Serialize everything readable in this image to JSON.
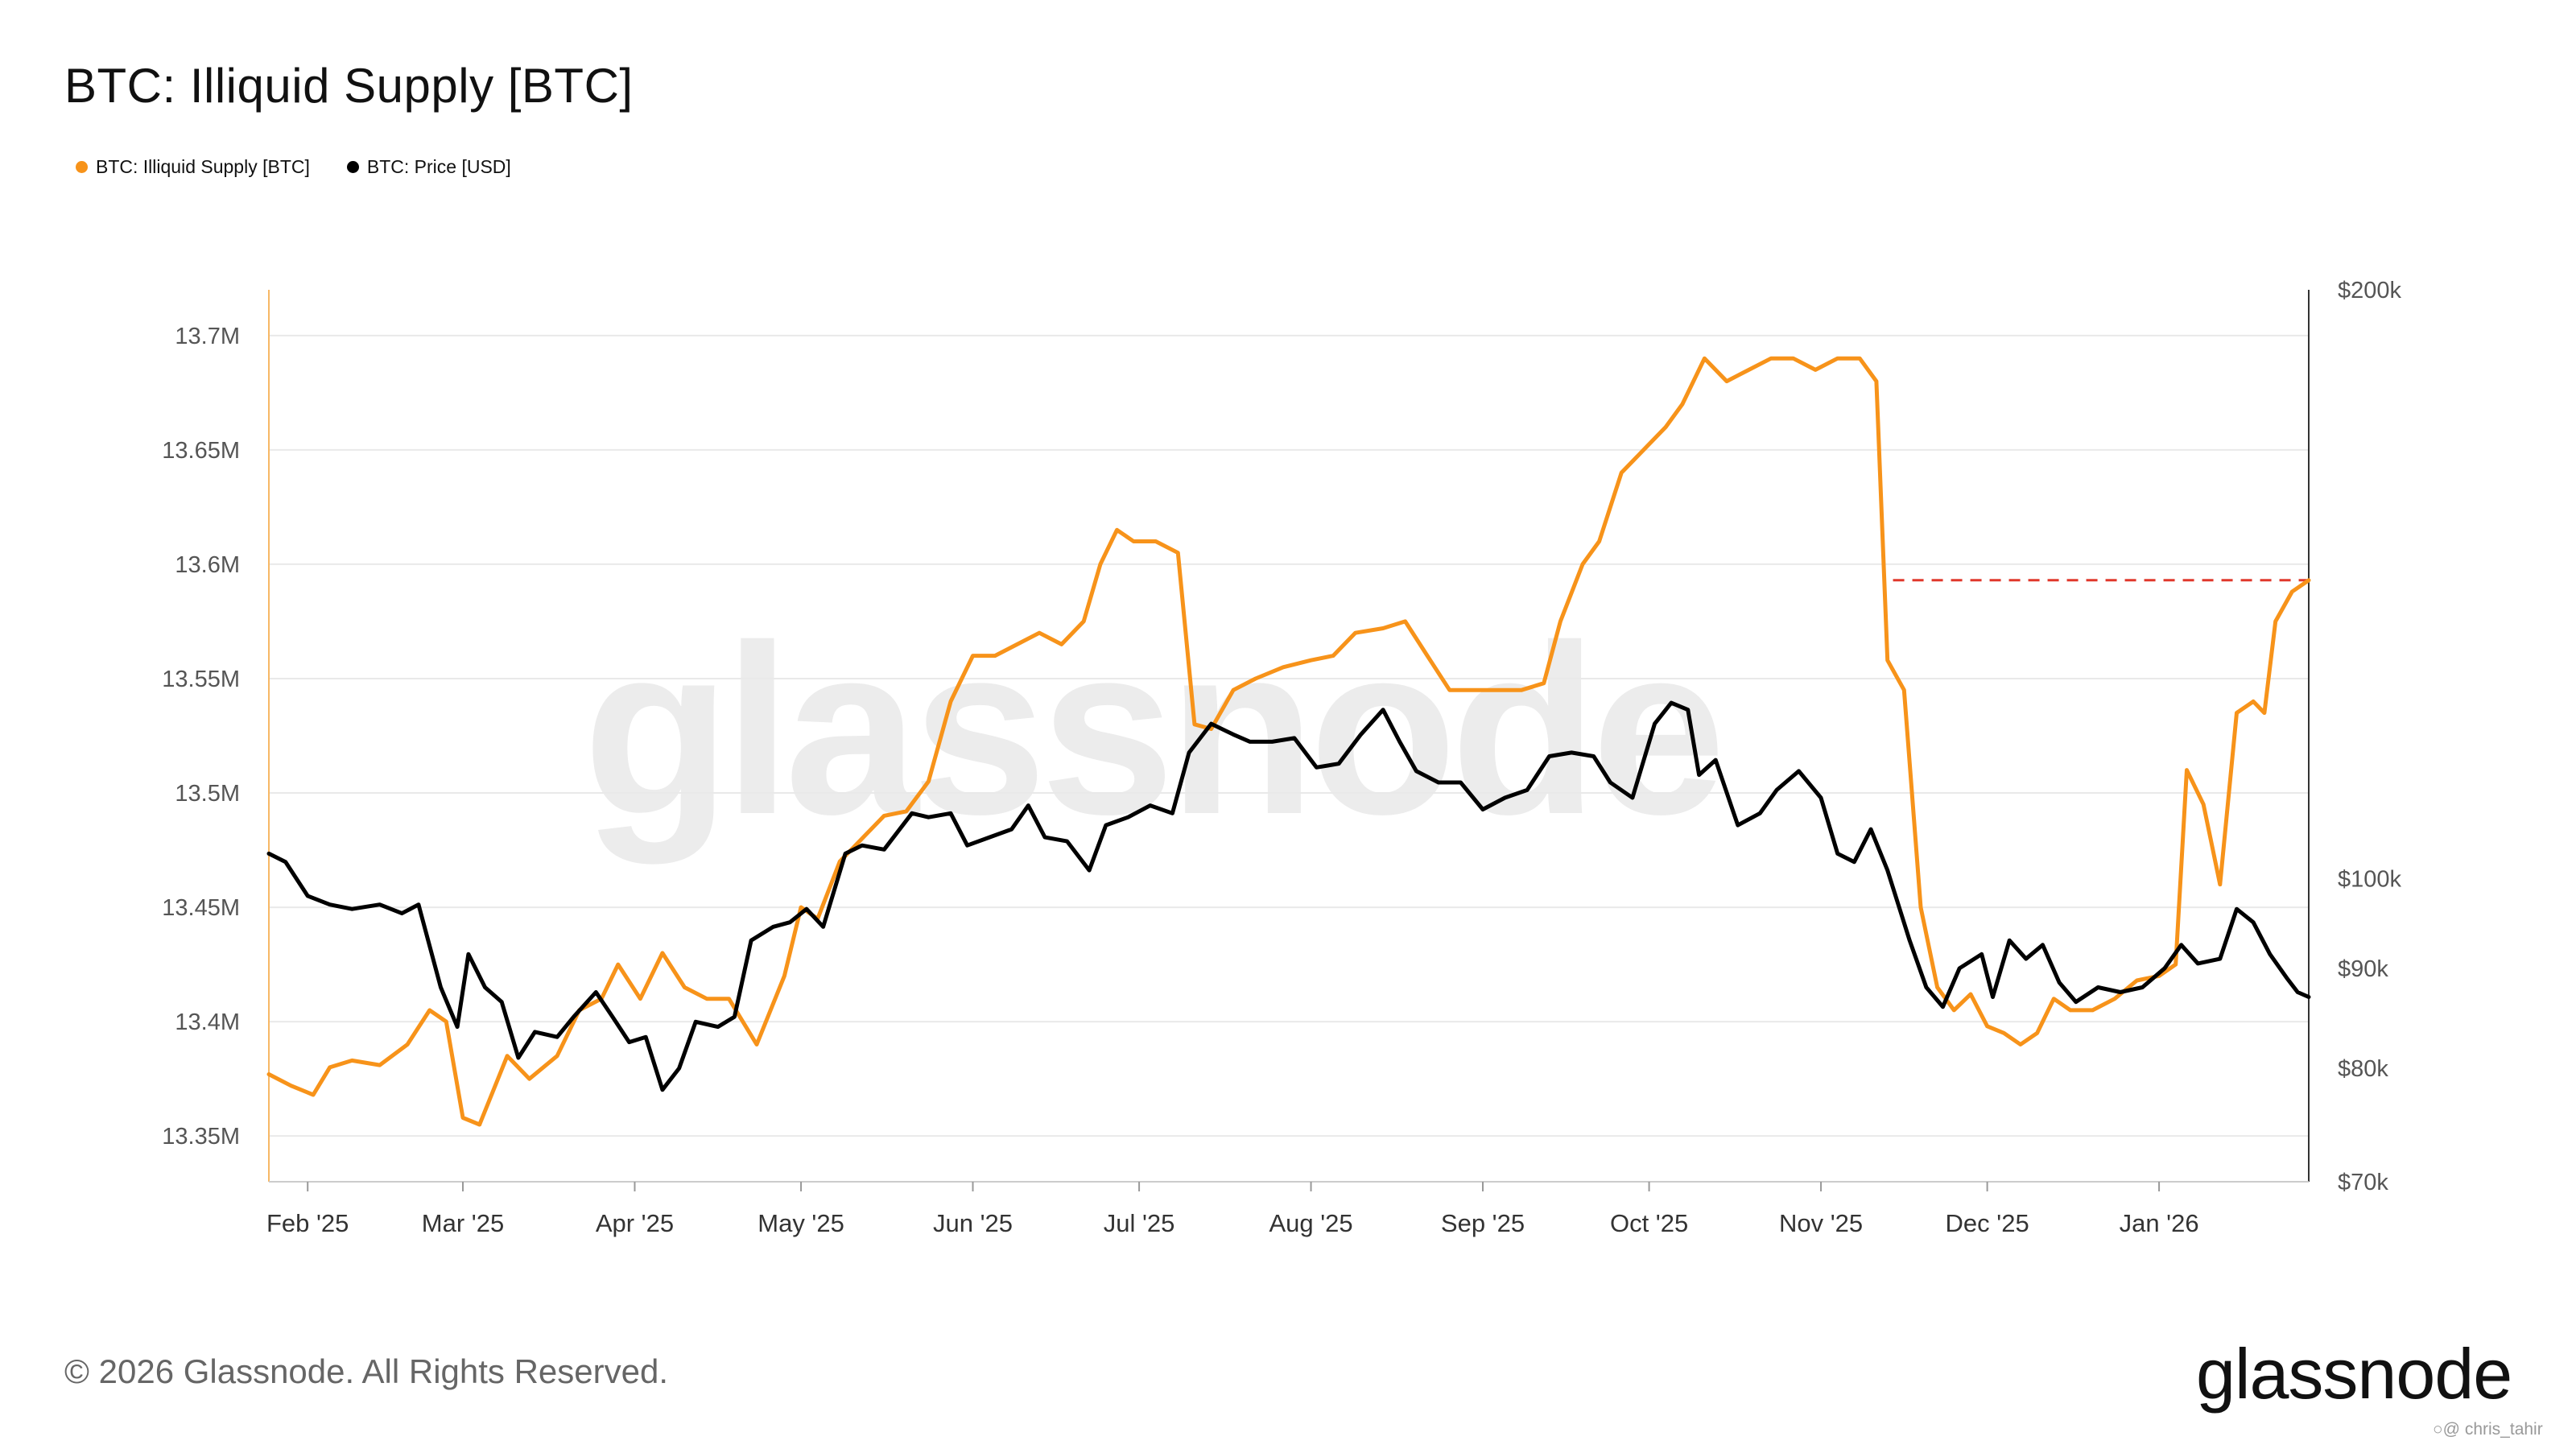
{
  "title": "BTC: Illiquid Supply [BTC]",
  "legend": [
    {
      "label": "BTC: Illiquid Supply [BTC]",
      "color": "#f7931a"
    },
    {
      "label": "BTC: Price [USD]",
      "color": "#000000"
    }
  ],
  "watermark": "glassnode",
  "copyright": "© 2026 Glassnode. All Rights Reserved.",
  "brand": "glassnode",
  "credit": "○@ chris_tahir",
  "chart_data": {
    "type": "line",
    "x_range": [
      "2025-01-25",
      "2026-01-28"
    ],
    "x_ticks": [
      "Feb '25",
      "Mar '25",
      "Apr '25",
      "May '25",
      "Jun '25",
      "Jul '25",
      "Aug '25",
      "Sep '25",
      "Oct '25",
      "Nov '25",
      "Dec '25",
      "Jan '26"
    ],
    "x_tick_dates": [
      "2025-02-01",
      "2025-03-01",
      "2025-04-01",
      "2025-05-01",
      "2025-06-01",
      "2025-07-01",
      "2025-08-01",
      "2025-09-01",
      "2025-10-01",
      "2025-11-01",
      "2025-12-01",
      "2026-01-01"
    ],
    "y_left": {
      "label": "",
      "range": [
        13330000,
        13720000
      ],
      "ticks": [
        "13.35M",
        "13.4M",
        "13.45M",
        "13.5M",
        "13.55M",
        "13.6M",
        "13.65M",
        "13.7M"
      ],
      "tick_values": [
        13350000,
        13400000,
        13450000,
        13500000,
        13550000,
        13600000,
        13650000,
        13700000
      ]
    },
    "y_right": {
      "label": "",
      "scale": "log",
      "range": [
        70000,
        200000
      ],
      "ticks": [
        "$70k",
        "$80k",
        "$90k",
        "$100k",
        "$200k"
      ],
      "tick_values": [
        70000,
        80000,
        90000,
        100000,
        200000
      ]
    },
    "grid": true,
    "reference_line": {
      "series": "BTC: Illiquid Supply [BTC]",
      "value": 13593000,
      "from": "2025-11-14",
      "to": "2026-01-28",
      "style": "dashed",
      "color": "#e0382b"
    },
    "series": [
      {
        "name": "BTC: Illiquid Supply [BTC]",
        "color": "#f7931a",
        "axis": "left",
        "points": [
          [
            "2025-01-25",
            13377000
          ],
          [
            "2025-01-29",
            13372000
          ],
          [
            "2025-02-02",
            13368000
          ],
          [
            "2025-02-05",
            13380000
          ],
          [
            "2025-02-09",
            13383000
          ],
          [
            "2025-02-14",
            13381000
          ],
          [
            "2025-02-19",
            13390000
          ],
          [
            "2025-02-23",
            13405000
          ],
          [
            "2025-02-26",
            13400000
          ],
          [
            "2025-03-01",
            13358000
          ],
          [
            "2025-03-04",
            13355000
          ],
          [
            "2025-03-09",
            13385000
          ],
          [
            "2025-03-13",
            13375000
          ],
          [
            "2025-03-18",
            13385000
          ],
          [
            "2025-03-22",
            13405000
          ],
          [
            "2025-03-26",
            13410000
          ],
          [
            "2025-03-29",
            13425000
          ],
          [
            "2025-04-02",
            13410000
          ],
          [
            "2025-04-06",
            13430000
          ],
          [
            "2025-04-10",
            13415000
          ],
          [
            "2025-04-14",
            13410000
          ],
          [
            "2025-04-18",
            13410000
          ],
          [
            "2025-04-23",
            13390000
          ],
          [
            "2025-04-28",
            13420000
          ],
          [
            "2025-05-01",
            13450000
          ],
          [
            "2025-05-04",
            13445000
          ],
          [
            "2025-05-08",
            13470000
          ],
          [
            "2025-05-12",
            13480000
          ],
          [
            "2025-05-16",
            13490000
          ],
          [
            "2025-05-20",
            13492000
          ],
          [
            "2025-05-24",
            13505000
          ],
          [
            "2025-05-28",
            13540000
          ],
          [
            "2025-06-01",
            13560000
          ],
          [
            "2025-06-05",
            13560000
          ],
          [
            "2025-06-09",
            13565000
          ],
          [
            "2025-06-13",
            13570000
          ],
          [
            "2025-06-17",
            13565000
          ],
          [
            "2025-06-21",
            13575000
          ],
          [
            "2025-06-24",
            13600000
          ],
          [
            "2025-06-27",
            13615000
          ],
          [
            "2025-06-30",
            13610000
          ],
          [
            "2025-07-04",
            13610000
          ],
          [
            "2025-07-08",
            13605000
          ],
          [
            "2025-07-11",
            13530000
          ],
          [
            "2025-07-14",
            13528000
          ],
          [
            "2025-07-18",
            13545000
          ],
          [
            "2025-07-22",
            13550000
          ],
          [
            "2025-07-27",
            13555000
          ],
          [
            "2025-08-01",
            13558000
          ],
          [
            "2025-08-05",
            13560000
          ],
          [
            "2025-08-09",
            13570000
          ],
          [
            "2025-08-14",
            13572000
          ],
          [
            "2025-08-18",
            13575000
          ],
          [
            "2025-08-22",
            13560000
          ],
          [
            "2025-08-26",
            13545000
          ],
          [
            "2025-08-30",
            13545000
          ],
          [
            "2025-09-03",
            13545000
          ],
          [
            "2025-09-08",
            13545000
          ],
          [
            "2025-09-12",
            13548000
          ],
          [
            "2025-09-15",
            13575000
          ],
          [
            "2025-09-19",
            13600000
          ],
          [
            "2025-09-22",
            13610000
          ],
          [
            "2025-09-26",
            13640000
          ],
          [
            "2025-09-30",
            13650000
          ],
          [
            "2025-10-04",
            13660000
          ],
          [
            "2025-10-07",
            13670000
          ],
          [
            "2025-10-11",
            13690000
          ],
          [
            "2025-10-15",
            13680000
          ],
          [
            "2025-10-19",
            13685000
          ],
          [
            "2025-10-23",
            13690000
          ],
          [
            "2025-10-27",
            13690000
          ],
          [
            "2025-10-31",
            13685000
          ],
          [
            "2025-11-04",
            13690000
          ],
          [
            "2025-11-08",
            13690000
          ],
          [
            "2025-11-11",
            13680000
          ],
          [
            "2025-11-13",
            13558000
          ],
          [
            "2025-11-16",
            13545000
          ],
          [
            "2025-11-19",
            13450000
          ],
          [
            "2025-11-22",
            13415000
          ],
          [
            "2025-11-25",
            13405000
          ],
          [
            "2025-11-28",
            13412000
          ],
          [
            "2025-12-01",
            13398000
          ],
          [
            "2025-12-04",
            13395000
          ],
          [
            "2025-12-07",
            13390000
          ],
          [
            "2025-12-10",
            13395000
          ],
          [
            "2025-12-13",
            13410000
          ],
          [
            "2025-12-16",
            13405000
          ],
          [
            "2025-12-20",
            13405000
          ],
          [
            "2025-12-24",
            13410000
          ],
          [
            "2025-12-28",
            13418000
          ],
          [
            "2026-01-01",
            13420000
          ],
          [
            "2026-01-04",
            13425000
          ],
          [
            "2026-01-06",
            13510000
          ],
          [
            "2026-01-09",
            13495000
          ],
          [
            "2026-01-12",
            13460000
          ],
          [
            "2026-01-15",
            13535000
          ],
          [
            "2026-01-18",
            13540000
          ],
          [
            "2026-01-20",
            13535000
          ],
          [
            "2026-01-22",
            13575000
          ],
          [
            "2026-01-25",
            13588000
          ],
          [
            "2026-01-28",
            13593000
          ]
        ]
      },
      {
        "name": "BTC: Price [USD]",
        "color": "#000000",
        "axis": "right",
        "points": [
          [
            "2025-01-25",
            103000
          ],
          [
            "2025-01-28",
            102000
          ],
          [
            "2025-02-01",
            98000
          ],
          [
            "2025-02-05",
            97000
          ],
          [
            "2025-02-09",
            96500
          ],
          [
            "2025-02-14",
            97000
          ],
          [
            "2025-02-18",
            96000
          ],
          [
            "2025-02-21",
            97000
          ],
          [
            "2025-02-25",
            88000
          ],
          [
            "2025-02-28",
            84000
          ],
          [
            "2025-03-02",
            91500
          ],
          [
            "2025-03-05",
            88000
          ],
          [
            "2025-03-08",
            86500
          ],
          [
            "2025-03-11",
            81000
          ],
          [
            "2025-03-14",
            83500
          ],
          [
            "2025-03-18",
            83000
          ],
          [
            "2025-03-21",
            85000
          ],
          [
            "2025-03-25",
            87500
          ],
          [
            "2025-03-28",
            85000
          ],
          [
            "2025-03-31",
            82500
          ],
          [
            "2025-04-03",
            83000
          ],
          [
            "2025-04-06",
            78000
          ],
          [
            "2025-04-09",
            80000
          ],
          [
            "2025-04-12",
            84500
          ],
          [
            "2025-04-16",
            84000
          ],
          [
            "2025-04-19",
            85000
          ],
          [
            "2025-04-22",
            93000
          ],
          [
            "2025-04-26",
            94500
          ],
          [
            "2025-04-29",
            95000
          ],
          [
            "2025-05-02",
            96500
          ],
          [
            "2025-05-05",
            94500
          ],
          [
            "2025-05-09",
            103000
          ],
          [
            "2025-05-12",
            104000
          ],
          [
            "2025-05-16",
            103500
          ],
          [
            "2025-05-21",
            108000
          ],
          [
            "2025-05-24",
            107500
          ],
          [
            "2025-05-28",
            108000
          ],
          [
            "2025-05-31",
            104000
          ],
          [
            "2025-06-04",
            105000
          ],
          [
            "2025-06-08",
            106000
          ],
          [
            "2025-06-11",
            109000
          ],
          [
            "2025-06-14",
            105000
          ],
          [
            "2025-06-18",
            104500
          ],
          [
            "2025-06-22",
            101000
          ],
          [
            "2025-06-25",
            106500
          ],
          [
            "2025-06-29",
            107500
          ],
          [
            "2025-07-03",
            109000
          ],
          [
            "2025-07-07",
            108000
          ],
          [
            "2025-07-10",
            116000
          ],
          [
            "2025-07-14",
            120000
          ],
          [
            "2025-07-18",
            118500
          ],
          [
            "2025-07-21",
            117500
          ],
          [
            "2025-07-25",
            117500
          ],
          [
            "2025-07-29",
            118000
          ],
          [
            "2025-08-02",
            114000
          ],
          [
            "2025-08-06",
            114500
          ],
          [
            "2025-08-10",
            118500
          ],
          [
            "2025-08-14",
            122000
          ],
          [
            "2025-08-17",
            117500
          ],
          [
            "2025-08-20",
            113500
          ],
          [
            "2025-08-24",
            112000
          ],
          [
            "2025-08-28",
            112000
          ],
          [
            "2025-09-01",
            108500
          ],
          [
            "2025-09-05",
            110000
          ],
          [
            "2025-09-09",
            111000
          ],
          [
            "2025-09-13",
            115500
          ],
          [
            "2025-09-17",
            116000
          ],
          [
            "2025-09-21",
            115500
          ],
          [
            "2025-09-24",
            112000
          ],
          [
            "2025-09-28",
            110000
          ],
          [
            "2025-10-02",
            120000
          ],
          [
            "2025-10-05",
            123000
          ],
          [
            "2025-10-08",
            122000
          ],
          [
            "2025-10-10",
            113000
          ],
          [
            "2025-10-13",
            115000
          ],
          [
            "2025-10-17",
            106500
          ],
          [
            "2025-10-21",
            108000
          ],
          [
            "2025-10-24",
            111000
          ],
          [
            "2025-10-28",
            113500
          ],
          [
            "2025-11-01",
            110000
          ],
          [
            "2025-11-04",
            103000
          ],
          [
            "2025-11-07",
            102000
          ],
          [
            "2025-11-10",
            106000
          ],
          [
            "2025-11-13",
            101000
          ],
          [
            "2025-11-17",
            93000
          ],
          [
            "2025-11-20",
            88000
          ],
          [
            "2025-11-23",
            86000
          ],
          [
            "2025-11-26",
            90000
          ],
          [
            "2025-11-30",
            91500
          ],
          [
            "2025-12-02",
            87000
          ],
          [
            "2025-12-05",
            93000
          ],
          [
            "2025-12-08",
            91000
          ],
          [
            "2025-12-11",
            92500
          ],
          [
            "2025-12-14",
            88500
          ],
          [
            "2025-12-17",
            86500
          ],
          [
            "2025-12-21",
            88000
          ],
          [
            "2025-12-25",
            87500
          ],
          [
            "2025-12-29",
            88000
          ],
          [
            "2026-01-02",
            90000
          ],
          [
            "2026-01-05",
            92500
          ],
          [
            "2026-01-08",
            90500
          ],
          [
            "2026-01-12",
            91000
          ],
          [
            "2026-01-15",
            96500
          ],
          [
            "2026-01-18",
            95000
          ],
          [
            "2026-01-21",
            91500
          ],
          [
            "2026-01-24",
            89000
          ],
          [
            "2026-01-26",
            87500
          ],
          [
            "2026-01-28",
            87000
          ]
        ]
      }
    ]
  }
}
